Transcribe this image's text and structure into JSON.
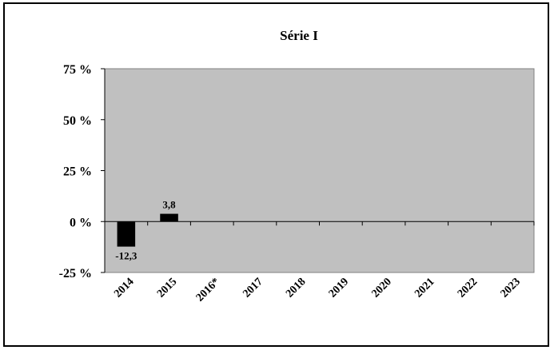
{
  "chart_data": {
    "type": "bar",
    "title": "Série I",
    "xlabel": "",
    "ylabel": "",
    "categories": [
      "2014",
      "2015",
      "2016*",
      "2017",
      "2018",
      "2019",
      "2020",
      "2021",
      "2022",
      "2023"
    ],
    "values": [
      -12.3,
      3.8,
      null,
      null,
      null,
      null,
      null,
      null,
      null,
      null
    ],
    "value_labels": [
      "-12,3",
      "3,8",
      "",
      "",
      "",
      "",
      "",
      "",
      "",
      ""
    ],
    "ylim": [
      -25,
      75
    ],
    "yticks": [
      75,
      50,
      25,
      0,
      -25
    ],
    "ytick_labels": [
      "75 %",
      "50 %",
      "25 %",
      "0 %",
      "-25 %"
    ],
    "grid": false,
    "colors": {
      "plot_background": "#c0c0c0",
      "bar": "#000000",
      "frame": "#000000"
    }
  }
}
